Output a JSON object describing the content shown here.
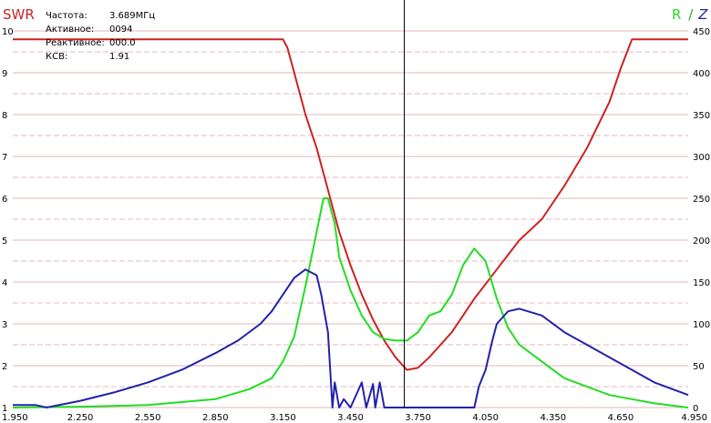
{
  "readout": {
    "freq_label": "Частота:",
    "freq_value": "3.689МГц",
    "active_label": "Активное:",
    "active_value": "0094",
    "reactive_label": "Реактивное:",
    "reactive_value": "000.0",
    "swr_label": "КСВ:",
    "swr_value": "1.91"
  },
  "chart_data": {
    "type": "line",
    "left_title": "SWR",
    "right_title_r": "R",
    "right_title_sep": "/",
    "right_title_z": "Z",
    "x_ticks": [
      "1.950",
      "2.250",
      "2.550",
      "2.850",
      "3.150",
      "3.450",
      "3.750",
      "4.050",
      "4.350",
      "4.650",
      "4.950"
    ],
    "y_left_ticks": [
      "10",
      "9",
      "8",
      "7",
      "6",
      "5",
      "4",
      "3",
      "2",
      "1"
    ],
    "y_right_ticks": [
      "450",
      "400",
      "350",
      "300",
      "250",
      "200",
      "150",
      "100",
      "50",
      "0"
    ],
    "xlim": [
      1.95,
      4.95
    ],
    "y_left_lim": [
      1,
      10
    ],
    "y_right_lim": [
      0,
      450
    ],
    "grid": true,
    "cursor_x": 3.689,
    "colors": {
      "swr": "#cc2222",
      "r": "#22dd22",
      "z": "#2222aa",
      "cursor": "#000000",
      "grid": "#e3b8b8"
    },
    "series": [
      {
        "name": "SWR",
        "axis": "left",
        "x": [
          1.95,
          3.15,
          3.17,
          3.2,
          3.25,
          3.3,
          3.35,
          3.4,
          3.45,
          3.5,
          3.55,
          3.6,
          3.65,
          3.7,
          3.75,
          3.8,
          3.85,
          3.9,
          3.95,
          4.0,
          4.05,
          4.1,
          4.15,
          4.2,
          4.3,
          4.4,
          4.5,
          4.6,
          4.65,
          4.7,
          4.95
        ],
        "y": [
          9.8,
          9.8,
          9.6,
          9.0,
          8.0,
          7.2,
          6.2,
          5.2,
          4.4,
          3.7,
          3.1,
          2.6,
          2.2,
          1.9,
          1.95,
          2.2,
          2.5,
          2.8,
          3.2,
          3.6,
          3.95,
          4.3,
          4.65,
          5.0,
          5.5,
          6.3,
          7.2,
          8.3,
          9.1,
          9.8,
          9.8
        ]
      },
      {
        "name": "R",
        "axis": "right",
        "x": [
          1.95,
          2.25,
          2.55,
          2.85,
          3.0,
          3.1,
          3.15,
          3.2,
          3.25,
          3.3,
          3.33,
          3.35,
          3.38,
          3.4,
          3.45,
          3.5,
          3.55,
          3.6,
          3.65,
          3.7,
          3.75,
          3.8,
          3.85,
          3.9,
          3.95,
          4.0,
          4.05,
          4.1,
          4.15,
          4.2,
          4.3,
          4.4,
          4.5,
          4.6,
          4.7,
          4.8,
          4.95
        ],
        "y": [
          0,
          1,
          3,
          10,
          22,
          35,
          55,
          85,
          145,
          210,
          250,
          250,
          220,
          180,
          140,
          110,
          90,
          82,
          80,
          80,
          90,
          110,
          115,
          135,
          170,
          190,
          175,
          130,
          95,
          75,
          55,
          35,
          25,
          15,
          10,
          5,
          0
        ]
      },
      {
        "name": "Z",
        "axis": "right",
        "x": [
          1.95,
          2.05,
          2.1,
          2.25,
          2.4,
          2.55,
          2.7,
          2.85,
          2.95,
          3.05,
          3.1,
          3.15,
          3.2,
          3.25,
          3.3,
          3.32,
          3.35,
          3.37,
          3.38,
          3.4,
          3.42,
          3.45,
          3.5,
          3.52,
          3.55,
          3.56,
          3.58,
          3.6,
          3.7,
          3.8,
          4.0,
          4.02,
          4.05,
          4.08,
          4.1,
          4.15,
          4.2,
          4.3,
          4.4,
          4.5,
          4.6,
          4.7,
          4.8,
          4.95
        ],
        "y": [
          3,
          3,
          0,
          8,
          18,
          30,
          45,
          65,
          80,
          100,
          115,
          135,
          155,
          165,
          158,
          135,
          90,
          0,
          30,
          0,
          10,
          0,
          30,
          0,
          28,
          0,
          30,
          0,
          0,
          0,
          0,
          25,
          45,
          80,
          100,
          115,
          118,
          110,
          90,
          75,
          60,
          45,
          30,
          15
        ]
      }
    ]
  }
}
